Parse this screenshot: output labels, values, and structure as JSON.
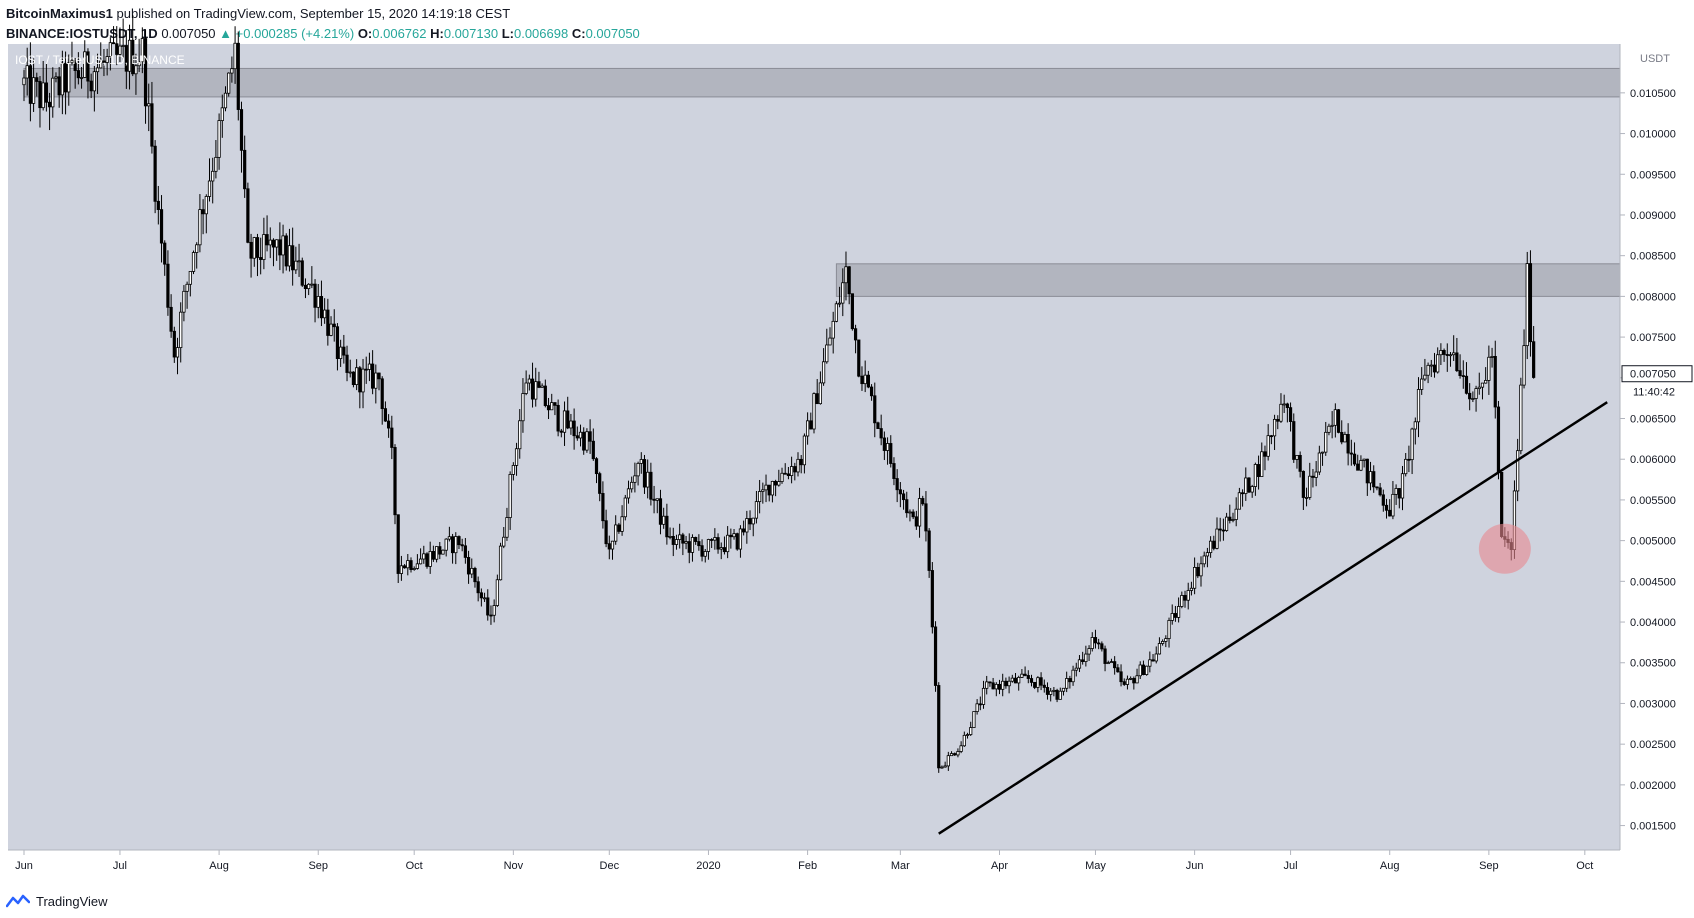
{
  "header": {
    "author": "BitcoinMaximus1",
    "published_text": "published on TradingView.com, September 15, 2020 14:19:18 CEST",
    "symbol": "BINANCE:IOSTUSDT, 1D",
    "last_price": "0.007050",
    "change": "▲ +0.000285 (+4.21%)",
    "o_label": "O:",
    "o_value": "0.006762",
    "h_label": "H:",
    "h_value": "0.007130",
    "l_label": "L:",
    "l_value": "0.006698",
    "c_label": "C:",
    "c_value": "0.007050"
  },
  "watermark": "IOST / TetherUS, 1D, BINANCE",
  "price_scale": {
    "currency_label": "USDT",
    "last_price_label": "0.007050",
    "countdown": "11:40:42"
  },
  "footer": {
    "brand": "TradingView"
  },
  "colors": {
    "plot_background": "#cfd3de",
    "candle": "#000000",
    "zone": "#9a9ca6",
    "highlight_circle": "#e8888f",
    "trendline": "#000000",
    "accent_green": "#26a69a"
  },
  "chart_data": {
    "type": "candlestick",
    "x_tick_labels": [
      "Jun",
      "Jul",
      "Aug",
      "Sep",
      "Oct",
      "Nov",
      "Dec",
      "2020",
      "Feb",
      "Mar",
      "Apr",
      "May",
      "Jun",
      "Jul",
      "Aug",
      "Sep",
      "Oct"
    ],
    "y_tick_labels": [
      "0.010500",
      "0.010000",
      "0.009500",
      "0.009000",
      "0.008500",
      "0.008000",
      "0.007500",
      "0.007000",
      "0.006500",
      "0.006000",
      "0.005500",
      "0.005000",
      "0.004500",
      "0.004000",
      "0.003500",
      "0.003000",
      "0.002500",
      "0.002000",
      "0.001500"
    ],
    "x_range": [
      "2019-05-27",
      "2020-10-12"
    ],
    "y_range": [
      0.0012,
      0.0111
    ],
    "series": [
      {
        "name": "IOST / TetherUS",
        "daily_close_path": [
          [
            "2019-06-01",
            0.0106
          ],
          [
            "2019-06-08",
            0.0104
          ],
          [
            "2019-06-15",
            0.0107
          ],
          [
            "2019-07-08",
            0.011
          ],
          [
            "2019-07-13",
            0.009
          ],
          [
            "2019-07-18",
            0.0073
          ],
          [
            "2019-07-25",
            0.0088
          ],
          [
            "2019-08-01",
            0.01
          ],
          [
            "2019-08-06",
            0.011
          ],
          [
            "2019-08-10",
            0.0085
          ],
          [
            "2019-08-20",
            0.0086
          ],
          [
            "2019-09-01",
            0.008
          ],
          [
            "2019-09-10",
            0.007
          ],
          [
            "2019-09-20",
            0.007
          ],
          [
            "2019-09-24",
            0.006
          ],
          [
            "2019-09-26",
            0.0047
          ],
          [
            "2019-10-05",
            0.0048
          ],
          [
            "2019-10-15",
            0.005
          ],
          [
            "2019-10-25",
            0.004
          ],
          [
            "2019-10-31",
            0.0057
          ],
          [
            "2019-11-05",
            0.007
          ],
          [
            "2019-11-15",
            0.0065
          ],
          [
            "2019-11-25",
            0.0062
          ],
          [
            "2019-12-01",
            0.0048
          ],
          [
            "2019-12-10",
            0.006
          ],
          [
            "2019-12-20",
            0.005
          ],
          [
            "2019-12-31",
            0.0049
          ],
          [
            "2020-01-10",
            0.005
          ],
          [
            "2020-01-20",
            0.0057
          ],
          [
            "2020-01-30",
            0.006
          ],
          [
            "2020-02-08",
            0.0075
          ],
          [
            "2020-02-13",
            0.0083
          ],
          [
            "2020-02-17",
            0.0072
          ],
          [
            "2020-02-25",
            0.0062
          ],
          [
            "2020-03-05",
            0.0052
          ],
          [
            "2020-03-08",
            0.0055
          ],
          [
            "2020-03-10",
            0.0046
          ],
          [
            "2020-03-12",
            0.0033
          ],
          [
            "2020-03-13",
            0.0022
          ],
          [
            "2020-03-20",
            0.0025
          ],
          [
            "2020-03-28",
            0.0032
          ],
          [
            "2020-04-10",
            0.0033
          ],
          [
            "2020-04-20",
            0.0031
          ],
          [
            "2020-04-30",
            0.0038
          ],
          [
            "2020-05-10",
            0.0032
          ],
          [
            "2020-05-20",
            0.0036
          ],
          [
            "2020-06-01",
            0.0046
          ],
          [
            "2020-06-15",
            0.0055
          ],
          [
            "2020-06-22",
            0.006
          ],
          [
            "2020-06-29",
            0.0068
          ],
          [
            "2020-07-05",
            0.0055
          ],
          [
            "2020-07-15",
            0.0065
          ],
          [
            "2020-07-25",
            0.0058
          ],
          [
            "2020-08-01",
            0.0054
          ],
          [
            "2020-08-05",
            0.0057
          ],
          [
            "2020-08-12",
            0.0071
          ],
          [
            "2020-08-20",
            0.0074
          ],
          [
            "2020-08-28",
            0.0067
          ],
          [
            "2020-09-02",
            0.0073
          ],
          [
            "2020-09-05",
            0.005
          ],
          [
            "2020-09-08",
            0.0049
          ],
          [
            "2020-09-11",
            0.0068
          ],
          [
            "2020-09-13",
            0.0082
          ],
          [
            "2020-09-15",
            0.00705
          ]
        ]
      }
    ],
    "resistance_zones": [
      {
        "from": "2019-06-01",
        "to": "2020-10-12",
        "low": 0.01045,
        "high": 0.0108
      },
      {
        "from": "2020-02-10",
        "to": "2020-10-12",
        "low": 0.008,
        "high": 0.0084
      }
    ],
    "trendline": [
      [
        "2020-03-13",
        0.0014
      ],
      [
        "2020-10-08",
        0.0067
      ]
    ],
    "highlight": {
      "date": "2020-09-06",
      "price": 0.0049
    },
    "grid": false
  }
}
